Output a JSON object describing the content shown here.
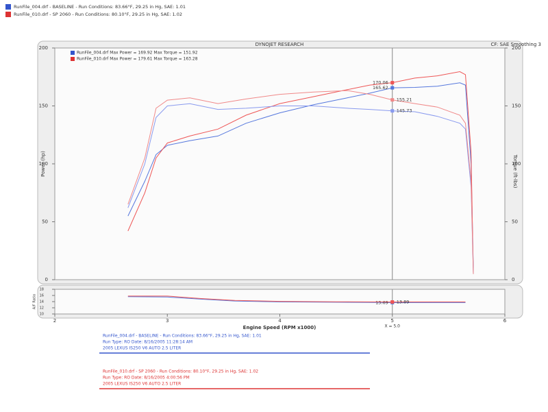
{
  "header": [
    {
      "text": "RunFile_004.drf - BASELINE - Run Conditions: 83.66°F, 29.25 in Hg, SAE: 1.01",
      "color": "#3355cc"
    },
    {
      "text": "RunFile_010.drf - SP 2060 - Run Conditions: 80.10°F, 29.25 in Hg, SAE: 1.02",
      "color": "#dd3333"
    }
  ],
  "chart_data": [
    {
      "type": "line",
      "title": "DYNOJET RESEARCH",
      "subtitle": "CF: SAE  Smoothing 3",
      "ylabel": "Power (hp)",
      "y2label": "Torque (ft-lbs)",
      "legend": [
        {
          "text": "RunFile_004.drf Max Power = 169.92    Max Torque = 151.92",
          "color": "#3355cc"
        },
        {
          "text": "RunFile_010.drf Max Power = 179.61    Max Torque = 163.28",
          "color": "#dd3333"
        }
      ],
      "x": [
        2.65,
        2.8,
        2.9,
        3.0,
        3.2,
        3.45,
        3.7,
        4.0,
        4.3,
        4.6,
        4.8,
        5.0,
        5.2,
        5.4,
        5.6,
        5.65,
        5.7,
        5.72
      ],
      "series": [
        {
          "color": "#5577dd",
          "values": [
            55,
            85,
            108,
            116,
            120,
            124,
            135,
            144,
            151,
            157,
            161,
            165.62,
            166,
            167,
            169.92,
            168,
            100,
            10
          ]
        },
        {
          "color": "#ee5555",
          "values": [
            42,
            75,
            105,
            118,
            124,
            130,
            142,
            152,
            158,
            164,
            168,
            170.06,
            174,
            176,
            179.61,
            177,
            110,
            5
          ]
        },
        {
          "color": "#8899ee",
          "axis": "y2",
          "values": [
            62,
            100,
            140,
            150,
            151.92,
            147,
            148,
            150,
            150,
            148,
            147,
            145.73,
            145,
            141,
            135,
            130,
            80,
            5
          ]
        },
        {
          "color": "#f08888",
          "axis": "y2",
          "values": [
            65,
            105,
            148,
            155,
            157,
            152,
            156,
            160,
            162,
            163.28,
            160,
            155.21,
            152,
            149,
            142,
            135,
            85,
            5
          ]
        }
      ],
      "xlim": [
        2,
        6
      ],
      "ylim": [
        0,
        200
      ],
      "yticks": [
        0,
        50,
        100,
        150,
        200
      ],
      "y2lim": [
        0,
        200
      ],
      "y2ticks": [
        0,
        50,
        100,
        150,
        200
      ],
      "cursor": {
        "x": 5,
        "index": 11
      }
    },
    {
      "type": "line",
      "ylabel": "A/F Ratio",
      "xlabel": "Engine Speed (RPM x1000)",
      "x": [
        2.65,
        3.0,
        3.3,
        3.6,
        4.0,
        4.5,
        5.0,
        5.5,
        5.65
      ],
      "series": [
        {
          "color": "#5577dd",
          "values": [
            15.6,
            15.5,
            14.8,
            14.2,
            13.9,
            13.8,
            13.69,
            13.7,
            13.7
          ]
        },
        {
          "color": "#ee5555",
          "values": [
            15.8,
            15.8,
            15.0,
            14.4,
            14.1,
            13.95,
            13.89,
            13.9,
            13.9
          ]
        }
      ],
      "xlim": [
        2,
        6
      ],
      "xticks": [
        2,
        3,
        4,
        5,
        6
      ],
      "ylim": [
        10,
        18
      ],
      "yticks": [
        10,
        12,
        14,
        16,
        18
      ],
      "cursor": {
        "x": 5,
        "index": 6,
        "label": "X = 5.0"
      }
    }
  ],
  "footer": [
    {
      "color": "#3355cc",
      "lines": [
        "RunFile_004.drf - BASELINE - Run Conditions: 83.66°F, 29.25 in Hg, SAE: 1.01",
        "Run Type: RO  Date: 8/16/2005 11:28:14 AM",
        "2005 LEXUS IS250 V6 AUTO 2.5 LITER"
      ]
    },
    {
      "color": "#dd3333",
      "lines": [
        "RunFile_010.drf - SP 2060 - Run Conditions: 80.10°F, 29.25 in Hg, SAE: 1.02",
        "Run Type: RO  Date: 8/16/2005 4:00:56 PM",
        "2005 LEXUS IS250 V6 AUTO 2.5 LITER"
      ]
    }
  ]
}
